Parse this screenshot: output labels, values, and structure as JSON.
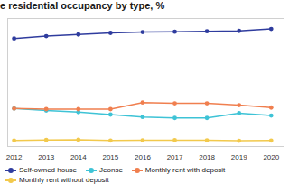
{
  "chart_data": {
    "type": "line",
    "title": "e residential occupancy by type, %",
    "x": [
      2012,
      2013,
      2014,
      2015,
      2016,
      2017,
      2018,
      2019,
      2020
    ],
    "xlim": [
      2011.8,
      2020.4
    ],
    "xticks": [
      2012,
      2013,
      2014,
      2015,
      2016,
      2017,
      2018,
      2019,
      2020
    ],
    "ylim": [
      0,
      64
    ],
    "yticks": [],
    "tick_labels": "x",
    "grid": false,
    "legend": "bottom",
    "series": [
      {
        "name": "Self-owned house",
        "color": "#2f3c9e",
        "marker": "circle",
        "line_style": "solid",
        "values": [
          54.0,
          55.2,
          56.0,
          56.8,
          57.2,
          57.4,
          57.6,
          57.8,
          58.8
        ]
      },
      {
        "name": "Jeonse",
        "color": "#3ec3d6",
        "marker": "circle",
        "line_style": "solid",
        "values": [
          19.0,
          18.0,
          17.2,
          16.0,
          14.8,
          14.3,
          14.3,
          16.7,
          15.5
        ]
      },
      {
        "name": "Monthly rent with deposit",
        "color": "#f07f4f",
        "marker": "circle",
        "line_style": "solid",
        "values": [
          19.0,
          18.7,
          18.7,
          18.7,
          22.0,
          21.6,
          21.6,
          20.7,
          19.5
        ]
      },
      {
        "name": "Monthly rent without deposit",
        "color": "#f2c94c",
        "marker": "circle",
        "line_style": "solid",
        "values": [
          3.0,
          3.3,
          3.4,
          3.0,
          3.1,
          3.2,
          3.1,
          2.9,
          3.0
        ]
      }
    ]
  }
}
